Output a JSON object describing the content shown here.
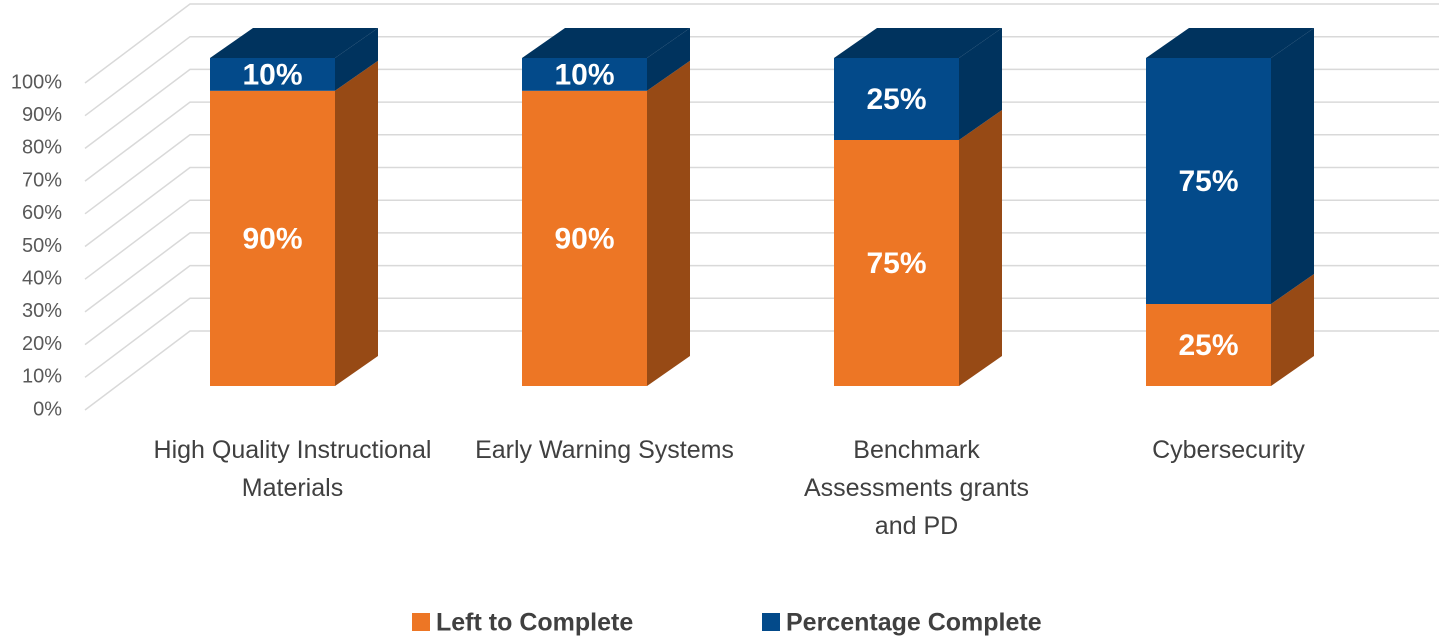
{
  "chart_data": {
    "type": "bar3d_stacked",
    "categories": [
      "High Quality Instructional Materials",
      "Early Warning Systems",
      "Benchmark Assessments grants and PD",
      "Cybersecurity"
    ],
    "series": [
      {
        "name": "Left to Complete",
        "color": "#ED7625",
        "side_color": "#974A15",
        "values": [
          90,
          90,
          75,
          25
        ],
        "value_labels": [
          "90%",
          "90%",
          "75%",
          "25%"
        ]
      },
      {
        "name": "Percentage Complete",
        "color": "#034A8A",
        "side_color": "#00335E",
        "values": [
          10,
          10,
          25,
          75
        ],
        "value_labels": [
          "10%",
          "10%",
          "25%",
          "75%"
        ]
      }
    ],
    "ylim": [
      0,
      100
    ],
    "yticks": [
      {
        "value": 0,
        "label": "0%"
      },
      {
        "value": 10,
        "label": "10%"
      },
      {
        "value": 20,
        "label": "20%"
      },
      {
        "value": 30,
        "label": "30%"
      },
      {
        "value": 40,
        "label": "40%"
      },
      {
        "value": 50,
        "label": "50%"
      },
      {
        "value": 60,
        "label": "60%"
      },
      {
        "value": 70,
        "label": "70%"
      },
      {
        "value": 80,
        "label": "80%"
      },
      {
        "value": 90,
        "label": "90%"
      },
      {
        "value": 100,
        "label": "100%"
      }
    ],
    "grid": true,
    "legend": "bottom"
  }
}
